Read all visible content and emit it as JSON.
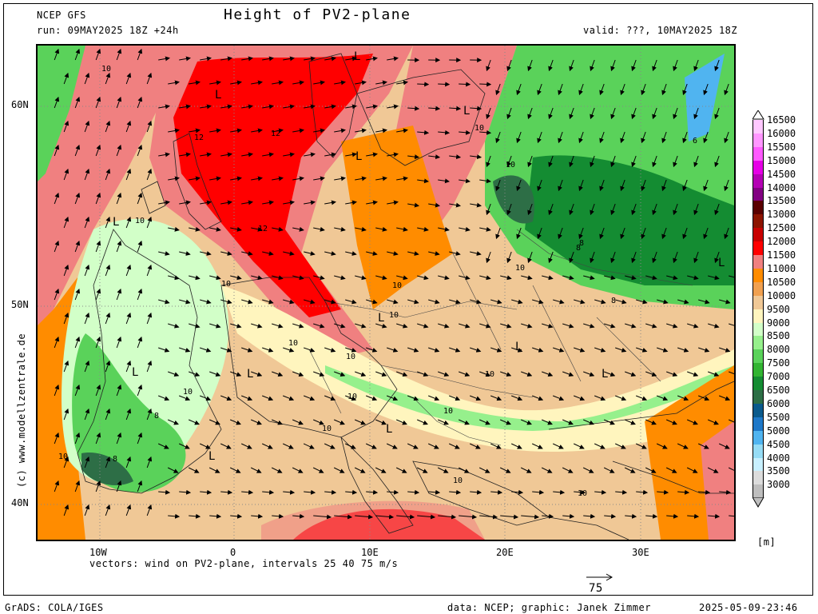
{
  "header": {
    "model": "NCEP GFS",
    "run": "run: 09MAY2025 18Z +24h",
    "title": "Height of PV2-plane",
    "valid": "valid: ???, 10MAY2025 18Z"
  },
  "axes": {
    "lat_labels": [
      "60N",
      "50N",
      "40N"
    ],
    "lon_labels": [
      "10W",
      "0",
      "10E",
      "20E",
      "30E"
    ]
  },
  "legend": {
    "values": [
      "16500",
      "16000",
      "15500",
      "15000",
      "14500",
      "14000",
      "13500",
      "13000",
      "12500",
      "12000",
      "11500",
      "11000",
      "10500",
      "10000",
      "9500",
      "9000",
      "8500",
      "8000",
      "7500",
      "7000",
      "6500",
      "6000",
      "5500",
      "5000",
      "4500",
      "4000",
      "3500",
      "3000"
    ],
    "colors": [
      "#ffc8ff",
      "#ff96ff",
      "#ff5aff",
      "#e600e6",
      "#b400b4",
      "#820082",
      "#5a0000",
      "#8c1400",
      "#c80000",
      "#ff0000",
      "#f08080",
      "#ff8c00",
      "#f0a050",
      "#f0c896",
      "#fff5be",
      "#d2ffc8",
      "#96f08c",
      "#5ad25a",
      "#32b432",
      "#148c32",
      "#2d6e46",
      "#0a5a8c",
      "#1e78c8",
      "#50b4f0",
      "#96dcf5",
      "#c8f0ff",
      "#dcdcdc",
      "#bebebe"
    ],
    "unit": "[m]"
  },
  "footer": {
    "vectors_note": "vectors: wind on PV2-plane, intervals 25 40 75 m/s",
    "scale_label": "75",
    "grads": "GrADS: COLA/IGES",
    "credits": "data: NCEP; graphic: Janek Zimmer",
    "timestamp": "2025-05-09-23:46",
    "watermark": "(c) www.modellzentrale.de"
  },
  "map_labels": {
    "lows": [
      "L",
      "L",
      "L",
      "L",
      "L",
      "L",
      "L",
      "L",
      "L",
      "L",
      "L",
      "L",
      "L"
    ],
    "contours": [
      "10",
      "12",
      "12",
      "12",
      "10",
      "10",
      "10",
      "10",
      "10",
      "10",
      "10",
      "10",
      "10",
      "10",
      "10",
      "10",
      "10",
      "10",
      "8",
      "8",
      "8",
      "8",
      "8",
      "6",
      "10",
      "10",
      "10"
    ]
  }
}
